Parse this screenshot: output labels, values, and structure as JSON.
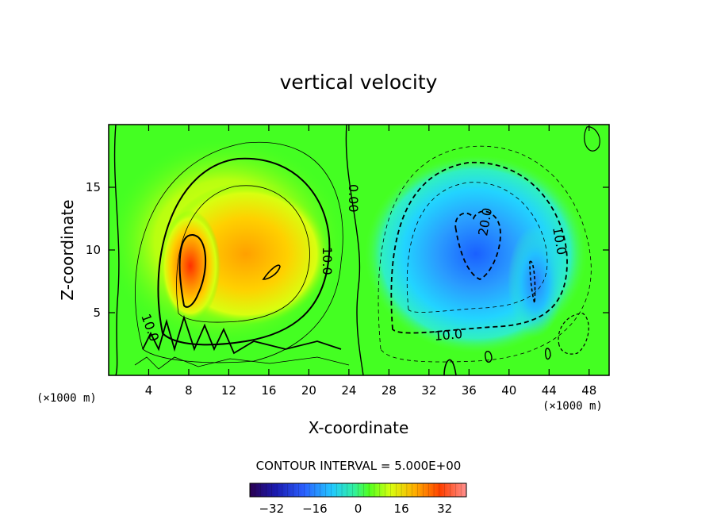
{
  "chart_data": {
    "type": "heatmap",
    "title": "vertical velocity",
    "xlabel": "X-coordinate",
    "ylabel": "Z-coordinate",
    "xlim": [
      0,
      50
    ],
    "ylim": [
      0,
      20
    ],
    "x_unit_left": "(×1000 m)",
    "x_unit_right": "(×1000 m)",
    "x_ticks": [
      "4",
      "8",
      "12",
      "16",
      "20",
      "24",
      "28",
      "32",
      "36",
      "40",
      "44",
      "48"
    ],
    "y_ticks": [
      "5",
      "10",
      "15"
    ],
    "contour_interval_text": "CONTOUR INTERVAL = 5.000E+00",
    "contour_labels": [
      "10.0",
      "0.00",
      "10.0",
      "20.0",
      "10.0",
      "10.0"
    ],
    "colorbar": {
      "range": [
        -40,
        40
      ],
      "ticks": [
        "−32",
        "−16",
        "0",
        "16",
        "32"
      ]
    },
    "features": [
      {
        "name": "updraft",
        "x": 8.2,
        "z": 9.5,
        "peak": 30
      },
      {
        "name": "updraft-secondary",
        "x": 16,
        "z": 9,
        "peak": 18
      },
      {
        "name": "downdraft",
        "x": 37,
        "z": 11,
        "peak": -22
      },
      {
        "name": "downdraft-secondary",
        "x": 42.5,
        "z": 8,
        "peak": -16
      }
    ]
  }
}
